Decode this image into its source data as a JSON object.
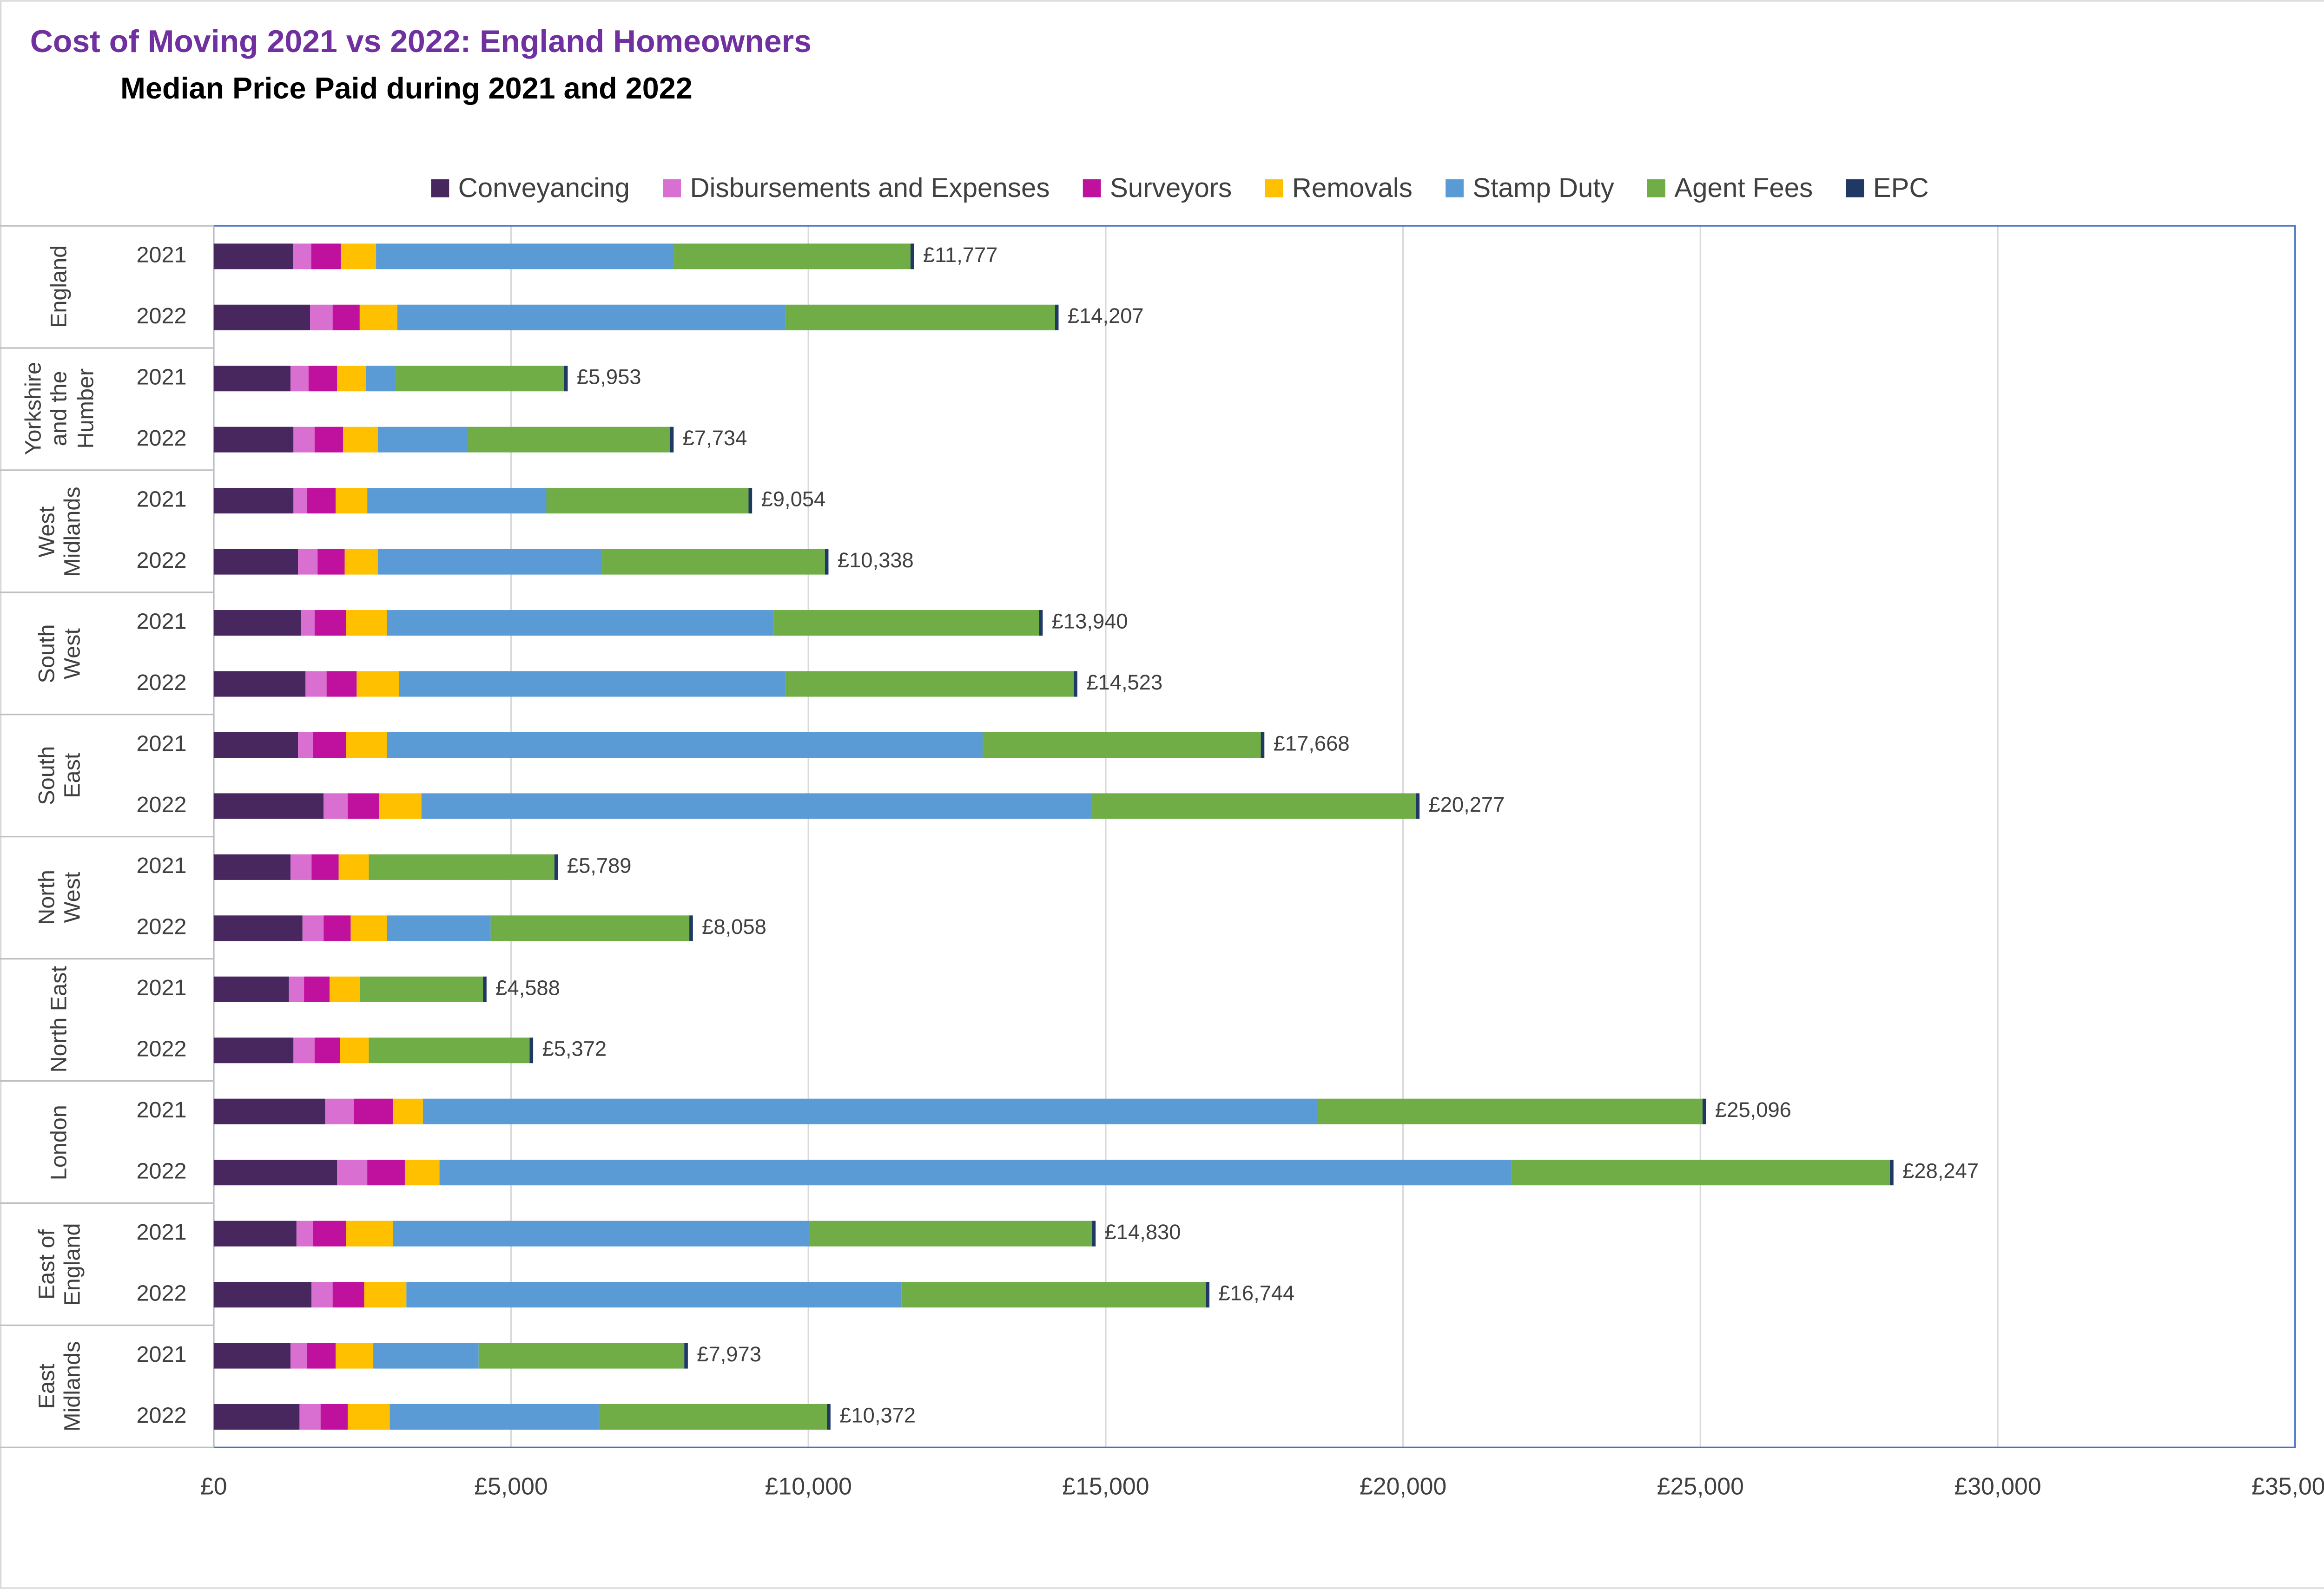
{
  "chart_data": {
    "type": "bar",
    "orientation": "horizontal",
    "stacked": true,
    "title": "Cost of Moving 2021 vs 2022: England Homeowners",
    "subtitle": "Median Price Paid during 2021 and 2022",
    "groups": [
      "England",
      "Yorkshire and the Humber",
      "West Midlands",
      "South West",
      "South East",
      "North West",
      "North East",
      "London",
      "East of England",
      "East Midlands"
    ],
    "categories": [
      "2021",
      "2022",
      "2021",
      "2022",
      "2021",
      "2022",
      "2021",
      "2022",
      "2021",
      "2022",
      "2021",
      "2022",
      "2021",
      "2022",
      "2021",
      "2022",
      "2021",
      "2022",
      "2021",
      "2022"
    ],
    "series": [
      {
        "name": "Conveyancing",
        "color": "#47275e",
        "values": [
          1340,
          1620,
          1291,
          1341,
          1341,
          1417,
          1468,
          1544,
          1417,
          1848,
          1291,
          1493,
          1266,
          1341,
          1873,
          2075,
          1392,
          1645,
          1291,
          1443
        ]
      },
      {
        "name": "Disbursements and Expenses",
        "color": "#d96fd0",
        "values": [
          300,
          380,
          303,
          355,
          228,
          329,
          228,
          354,
          253,
          405,
          354,
          355,
          253,
          355,
          481,
          507,
          278,
          355,
          278,
          354
        ]
      },
      {
        "name": "Surveyors",
        "color": "#c0119e",
        "values": [
          500,
          455,
          481,
          481,
          481,
          456,
          531,
          506,
          557,
          531,
          456,
          455,
          430,
          430,
          658,
          632,
          557,
          531,
          481,
          456
        ]
      },
      {
        "name": "Removals",
        "color": "#ffc000",
        "values": [
          590,
          633,
          481,
          582,
          532,
          557,
          684,
          709,
          684,
          709,
          506,
          608,
          506,
          481,
          506,
          583,
          785,
          709,
          633,
          708
        ]
      },
      {
        "name": "Stamp Duty",
        "color": "#5b9bd5",
        "values": [
          5010,
          6530,
          506,
          1518,
          3012,
          3771,
          6504,
          6505,
          10022,
          11263,
          0,
          1746,
          0,
          0,
          15034,
          18020,
          7011,
          8327,
          1772,
          3518
        ]
      },
      {
        "name": "Agent Fees",
        "color": "#70ad47",
        "values": [
          3977,
          4529,
          2831,
          3397,
          3400,
          3748,
          4465,
          4845,
          4675,
          5461,
          3122,
          3341,
          2073,
          2705,
          6484,
          6370,
          4747,
          5117,
          3458,
          3833
        ]
      },
      {
        "name": "EPC",
        "color": "#203864",
        "values": [
          60,
          60,
          60,
          60,
          60,
          60,
          60,
          60,
          60,
          60,
          60,
          60,
          60,
          60,
          60,
          60,
          60,
          60,
          60,
          60
        ]
      }
    ],
    "totals": [
      11777,
      14207,
      5953,
      7734,
      9054,
      10338,
      13940,
      14523,
      17668,
      20277,
      5789,
      8058,
      4588,
      5372,
      25096,
      28247,
      14830,
      16744,
      7973,
      10372
    ],
    "total_labels": [
      "£11,777",
      "£14,207",
      "£5,953",
      "£7,734",
      "£9,054",
      "£10,338",
      "£13,940",
      "£14,523",
      "£17,668",
      "£20,277",
      "£5,789",
      "£8,058",
      "£4,588",
      "£5,372",
      "£25,096",
      "£28,247",
      "£14,830",
      "£16,744",
      "£7,973",
      "£10,372"
    ],
    "xlim": [
      0,
      35000
    ],
    "xticks": [
      {
        "value": 0,
        "label": "£0"
      },
      {
        "value": 5000,
        "label": "£5,000"
      },
      {
        "value": 10000,
        "label": "£10,000"
      },
      {
        "value": 15000,
        "label": "£15,000"
      },
      {
        "value": 20000,
        "label": "£20,000"
      },
      {
        "value": 25000,
        "label": "£25,000"
      },
      {
        "value": 30000,
        "label": "£30,000"
      },
      {
        "value": 35000,
        "label": "£35,000"
      }
    ],
    "grid": true,
    "legend": "top"
  }
}
